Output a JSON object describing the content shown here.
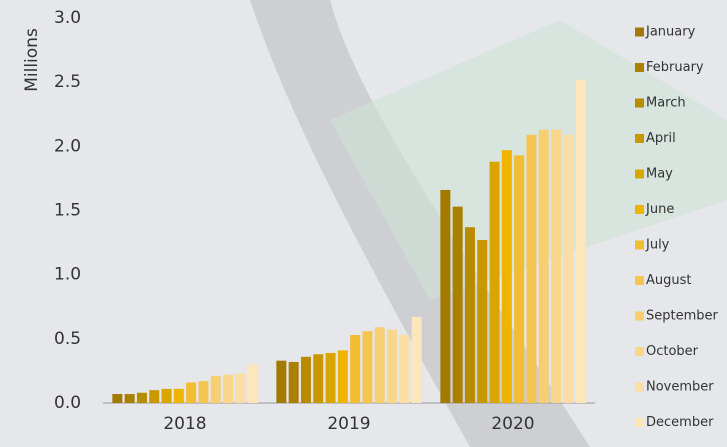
{
  "chart_data": {
    "type": "bar",
    "y_axis_label": "Millions",
    "categories": [
      "2018",
      "2019",
      "2020"
    ],
    "ylim": [
      0,
      3
    ],
    "yticks": [
      {
        "value": 0,
        "label": "0.0"
      },
      0.5,
      {
        "value": 1,
        "label": "1.0"
      },
      1.5,
      {
        "value": 2,
        "label": "2.0"
      },
      2.5,
      {
        "value": 3,
        "label": "3.0"
      }
    ],
    "series": [
      {
        "name": "January",
        "color": "#a27a00",
        "values": [
          0.07,
          0.33,
          1.66
        ]
      },
      {
        "name": "February",
        "color": "#a98000",
        "values": [
          0.07,
          0.32,
          1.53
        ]
      },
      {
        "name": "March",
        "color": "#b98b00",
        "values": [
          0.08,
          0.36,
          1.37
        ]
      },
      {
        "name": "April",
        "color": "#c99700",
        "values": [
          0.1,
          0.38,
          1.27
        ]
      },
      {
        "name": "May",
        "color": "#dba500",
        "values": [
          0.11,
          0.39,
          1.88
        ]
      },
      {
        "name": "June",
        "color": "#f0b400",
        "values": [
          0.11,
          0.41,
          1.97
        ]
      },
      {
        "name": "July",
        "color": "#f3bd33",
        "values": [
          0.16,
          0.53,
          1.93
        ]
      },
      {
        "name": "August",
        "color": "#f5c552",
        "values": [
          0.17,
          0.56,
          2.09
        ]
      },
      {
        "name": "September",
        "color": "#f7ce70",
        "values": [
          0.21,
          0.59,
          2.13
        ]
      },
      {
        "name": "October",
        "color": "#f8d68a",
        "values": [
          0.22,
          0.57,
          2.13
        ]
      },
      {
        "name": "November",
        "color": "#fadea3",
        "values": [
          0.23,
          0.53,
          2.09
        ]
      },
      {
        "name": "December",
        "color": "#fce6ba",
        "values": [
          0.3,
          0.67,
          2.52
        ]
      }
    ]
  }
}
